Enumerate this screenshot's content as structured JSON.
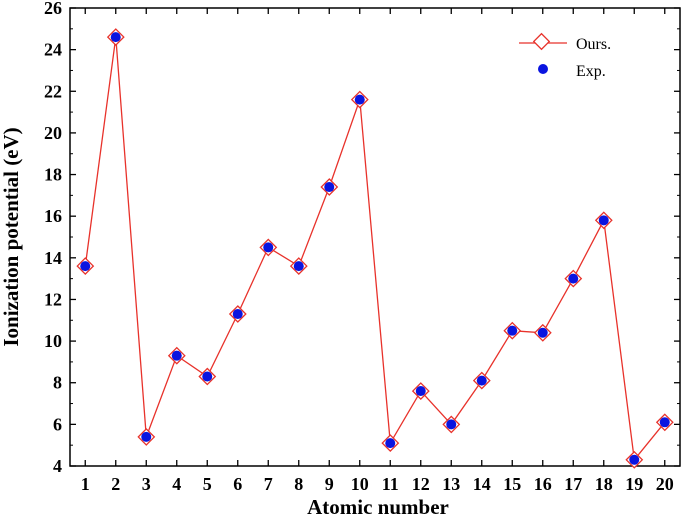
{
  "chart_data": {
    "type": "line",
    "xlabel": "Atomic number",
    "ylabel": "Ionization potential (eV)",
    "categories": [
      "1",
      "2",
      "3",
      "4",
      "5",
      "6",
      "7",
      "8",
      "9",
      "10",
      "11",
      "12",
      "13",
      "14",
      "15",
      "16",
      "17",
      "18",
      "19",
      "20"
    ],
    "x": [
      1,
      2,
      3,
      4,
      5,
      6,
      7,
      8,
      9,
      10,
      11,
      12,
      13,
      14,
      15,
      16,
      17,
      18,
      19,
      20
    ],
    "xlim": [
      0.5,
      20.5
    ],
    "ylim": [
      4,
      26
    ],
    "yticks": [
      4,
      6,
      8,
      10,
      12,
      14,
      16,
      18,
      20,
      22,
      24,
      26
    ],
    "series": [
      {
        "name": "Ours.",
        "marker": "diamond-open",
        "color": "#e8322b",
        "values": [
          13.6,
          24.6,
          5.4,
          9.3,
          8.3,
          11.3,
          14.5,
          13.6,
          17.4,
          21.6,
          5.1,
          7.6,
          6.0,
          8.1,
          10.5,
          10.4,
          13.0,
          15.8,
          4.3,
          6.1
        ]
      },
      {
        "name": "Exp.",
        "marker": "circle-filled",
        "color": "#0a14e0",
        "values": [
          13.6,
          24.6,
          5.4,
          9.3,
          8.3,
          11.3,
          14.5,
          13.6,
          17.4,
          21.6,
          5.1,
          7.6,
          6.0,
          8.1,
          10.5,
          10.4,
          13.0,
          15.8,
          4.3,
          6.1
        ]
      }
    ],
    "legend_position": "top-right",
    "grid": false
  }
}
